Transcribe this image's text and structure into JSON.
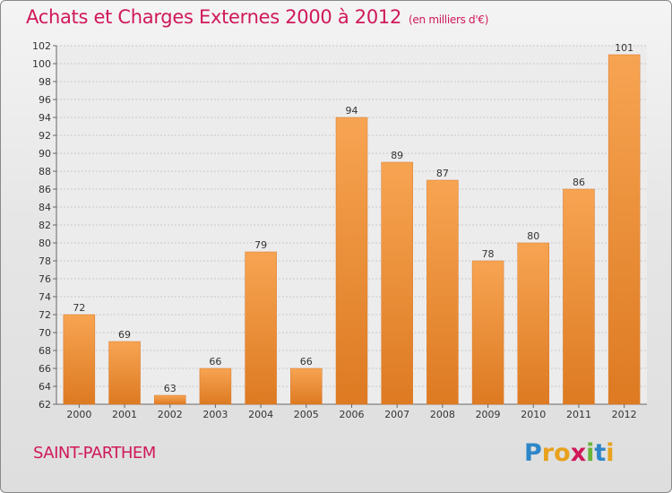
{
  "title": "Achats et Charges Externes 2000 à 2012",
  "subtitle": "(en milliers d'€)",
  "city": "SAINT-PARTHEM",
  "logo": {
    "letters": [
      "P",
      "r",
      "o",
      "x",
      "i",
      "t",
      "i"
    ],
    "colors": [
      "#2e86c8",
      "#e8a11c",
      "#e8a11c",
      "#d0185a",
      "#6ab43a",
      "#2e86c8",
      "#e8a11c"
    ]
  },
  "colors": {
    "bar_light": "#f7a452",
    "bar_dark": "#dd7a22",
    "text_accent": "#d0185a"
  },
  "chart_data": {
    "type": "bar",
    "title": "Achats et Charges Externes 2000 à 2012",
    "ylabel": "en milliers d'€",
    "xlabel": "",
    "categories": [
      "2000",
      "2001",
      "2002",
      "2003",
      "2004",
      "2005",
      "2006",
      "2007",
      "2008",
      "2009",
      "2010",
      "2011",
      "2012"
    ],
    "values": [
      72,
      69,
      63,
      66,
      79,
      66,
      94,
      89,
      87,
      78,
      80,
      86,
      101
    ],
    "ylim": [
      62,
      102
    ],
    "yticks": [
      62,
      64,
      66,
      68,
      70,
      72,
      74,
      76,
      78,
      80,
      82,
      84,
      86,
      88,
      90,
      92,
      94,
      96,
      98,
      100,
      102
    ],
    "grid": true
  }
}
